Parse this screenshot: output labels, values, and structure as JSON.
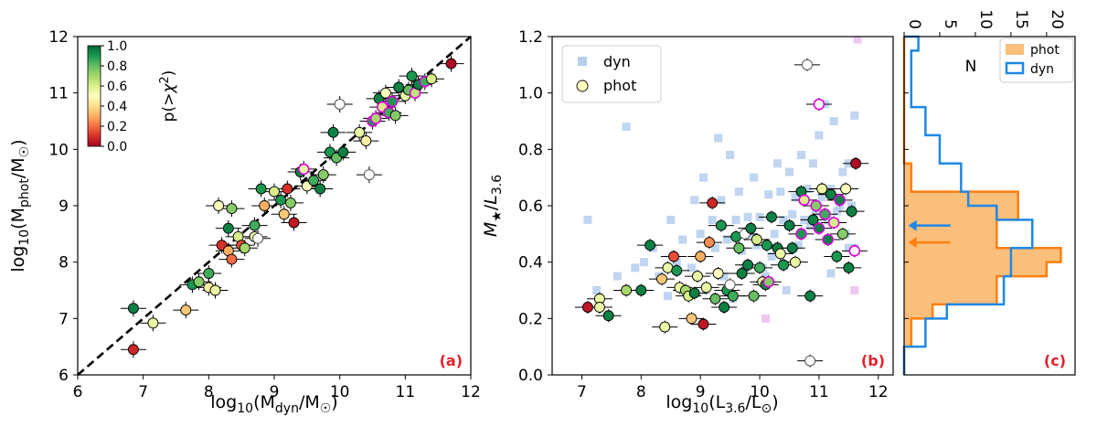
{
  "chart_data": [
    {
      "type": "scatter",
      "panel_label": "(a)",
      "xlabel": "log10(Mdyn/M☉)",
      "ylabel": "log10(Mphot/M☉)",
      "xlim": [
        6,
        12
      ],
      "ylim": [
        6,
        12
      ],
      "xticks": [
        "6",
        "7",
        "8",
        "9",
        "10",
        "11",
        "12"
      ],
      "yticks": [
        "6",
        "7",
        "8",
        "9",
        "10",
        "11",
        "12"
      ],
      "one_to_one_line": true,
      "colorbar": {
        "label": "p(>χ²)",
        "ticks": [
          "0.0",
          "0.2",
          "0.4",
          "0.6",
          "0.8",
          "1.0"
        ],
        "colors": [
          "#a50026",
          "#d73027",
          "#f46d43",
          "#fdae61",
          "#fee08b",
          "#ffffbf",
          "#d9ef8b",
          "#a6d96a",
          "#66bd63",
          "#1a9850",
          "#006837"
        ]
      },
      "points": [
        {
          "x": 6.85,
          "y": 7.18,
          "p": 0.95
        },
        {
          "x": 6.85,
          "y": 6.45,
          "p": 0.08
        },
        {
          "x": 7.15,
          "y": 6.92,
          "p": 0.55
        },
        {
          "x": 7.65,
          "y": 7.15,
          "p": 0.35
        },
        {
          "x": 7.75,
          "y": 7.6,
          "p": 0.9
        },
        {
          "x": 7.85,
          "y": 7.65,
          "p": 0.75
        },
        {
          "x": 8.0,
          "y": 7.8,
          "p": 0.85
        },
        {
          "x": 8.0,
          "y": 7.55,
          "p": 0.45
        },
        {
          "x": 8.1,
          "y": 7.5,
          "p": 0.55
        },
        {
          "x": 8.2,
          "y": 8.3,
          "p": 0.1
        },
        {
          "x": 8.3,
          "y": 8.2,
          "p": 0.3
        },
        {
          "x": 8.35,
          "y": 8.05,
          "p": 0.2
        },
        {
          "x": 8.3,
          "y": 8.6,
          "p": 0.95
        },
        {
          "x": 8.45,
          "y": 8.45,
          "p": 0.6
        },
        {
          "x": 8.5,
          "y": 8.3,
          "p": 0.15
        },
        {
          "x": 8.55,
          "y": 8.25,
          "p": 0.7
        },
        {
          "x": 8.15,
          "y": 9.0,
          "p": 0.5
        },
        {
          "x": 8.35,
          "y": 8.95,
          "p": 0.75
        },
        {
          "x": 8.7,
          "y": 8.65,
          "p": 0.85
        },
        {
          "x": 8.7,
          "y": 8.45,
          "p": 0.55
        },
        {
          "x": 8.75,
          "y": 8.42,
          "p": -1
        },
        {
          "x": 8.85,
          "y": 9.0,
          "p": 0.3
        },
        {
          "x": 8.8,
          "y": 9.3,
          "p": 0.9
        },
        {
          "x": 9.0,
          "y": 9.25,
          "p": 0.6
        },
        {
          "x": 9.1,
          "y": 9.1,
          "p": 0.9
        },
        {
          "x": 9.15,
          "y": 8.85,
          "p": 0.35
        },
        {
          "x": 9.2,
          "y": 9.3,
          "p": 0.1
        },
        {
          "x": 9.25,
          "y": 9.05,
          "p": 0.75
        },
        {
          "x": 9.3,
          "y": 8.7,
          "p": 0.05
        },
        {
          "x": 9.4,
          "y": 9.6,
          "p": 0.95
        },
        {
          "x": 9.45,
          "y": 9.65,
          "p": 0.55,
          "ring": true
        },
        {
          "x": 9.5,
          "y": 9.35,
          "p": 0.5
        },
        {
          "x": 9.6,
          "y": 9.45,
          "p": 0.85
        },
        {
          "x": 9.7,
          "y": 9.3,
          "p": 0.95
        },
        {
          "x": 9.75,
          "y": 9.55,
          "p": 0.75
        },
        {
          "x": 9.85,
          "y": 9.95,
          "p": 0.9
        },
        {
          "x": 9.9,
          "y": 10.3,
          "p": 0.95
        },
        {
          "x": 9.95,
          "y": 9.85,
          "p": 0.8
        },
        {
          "x": 10.0,
          "y": 10.8,
          "p": -1
        },
        {
          "x": 10.05,
          "y": 9.95,
          "p": 0.95
        },
        {
          "x": 10.3,
          "y": 10.3,
          "p": 0.55
        },
        {
          "x": 10.4,
          "y": 10.15,
          "p": 0.45
        },
        {
          "x": 10.45,
          "y": 9.55,
          "p": -1
        },
        {
          "x": 10.5,
          "y": 10.5,
          "p": 0.9,
          "ring": true
        },
        {
          "x": 10.55,
          "y": 10.55,
          "p": 0.7,
          "ring": true
        },
        {
          "x": 10.6,
          "y": 10.9,
          "p": 0.95
        },
        {
          "x": 10.65,
          "y": 10.75,
          "p": 0.6,
          "ring": true
        },
        {
          "x": 10.7,
          "y": 11.0,
          "p": 0.5
        },
        {
          "x": 10.75,
          "y": 10.65,
          "p": 0.85,
          "ring": true
        },
        {
          "x": 10.8,
          "y": 10.85,
          "p": 0.9,
          "ring": true
        },
        {
          "x": 10.85,
          "y": 10.6,
          "p": 0.75
        },
        {
          "x": 10.9,
          "y": 11.1,
          "p": 0.95
        },
        {
          "x": 11.0,
          "y": 10.95,
          "p": 0.55
        },
        {
          "x": 11.05,
          "y": 11.05,
          "p": 0.8
        },
        {
          "x": 11.1,
          "y": 11.3,
          "p": 0.9
        },
        {
          "x": 11.15,
          "y": 11.0,
          "p": 0.65,
          "ring": true
        },
        {
          "x": 11.2,
          "y": 11.15,
          "p": 0.95
        },
        {
          "x": 11.3,
          "y": 11.2,
          "p": 0.85,
          "ring": true
        },
        {
          "x": 11.4,
          "y": 11.25,
          "p": 0.6
        },
        {
          "x": 11.7,
          "y": 11.52,
          "p": 0.02
        }
      ]
    },
    {
      "type": "scatter",
      "panel_label": "(b)",
      "xlabel": "log10(L3.6/L⊙)",
      "ylabel": "M★/L3.6",
      "xlim": [
        6.5,
        12.25
      ],
      "ylim": [
        0,
        1.2
      ],
      "xticks": [
        "7",
        "8",
        "9",
        "10",
        "11",
        "12"
      ],
      "yticks": [
        "0.0",
        "0.2",
        "0.4",
        "0.6",
        "0.8",
        "1.0",
        "1.2"
      ],
      "legend": {
        "position": "top-left",
        "items": [
          {
            "label": "dyn",
            "marker": "square"
          },
          {
            "label": "phot",
            "marker": "circle"
          }
        ]
      },
      "dyn_points": [
        [
          7.1,
          0.55
        ],
        [
          7.25,
          0.3
        ],
        [
          7.6,
          0.35
        ],
        [
          7.75,
          0.88
        ],
        [
          7.9,
          0.38
        ],
        [
          8.05,
          0.4
        ],
        [
          8.2,
          0.45
        ],
        [
          8.3,
          0.35
        ],
        [
          8.45,
          0.28
        ],
        [
          8.5,
          0.55
        ],
        [
          8.6,
          0.4
        ],
        [
          8.7,
          0.48
        ],
        [
          8.75,
          0.3
        ],
        [
          8.85,
          0.38
        ],
        [
          8.9,
          0.62
        ],
        [
          9.0,
          0.5
        ],
        [
          9.05,
          0.7
        ],
        [
          9.1,
          0.3
        ],
        [
          9.2,
          0.55
        ],
        [
          9.25,
          0.45
        ],
        [
          9.3,
          0.84
        ],
        [
          9.35,
          0.62
        ],
        [
          9.4,
          0.35
        ],
        [
          9.45,
          0.48
        ],
        [
          9.5,
          0.78
        ],
        [
          9.55,
          0.27
        ],
        [
          9.6,
          0.55
        ],
        [
          9.65,
          0.65
        ],
        [
          9.7,
          0.44
        ],
        [
          9.75,
          0.38
        ],
        [
          9.8,
          0.56
        ],
        [
          9.85,
          0.5
        ],
        [
          9.9,
          0.7
        ],
        [
          9.95,
          0.46
        ],
        [
          10.0,
          0.56
        ],
        [
          10.05,
          0.38
        ],
        [
          10.1,
          0.2
        ],
        [
          10.15,
          0.64
        ],
        [
          10.2,
          0.42
        ],
        [
          10.25,
          0.5
        ],
        [
          10.3,
          0.75
        ],
        [
          10.35,
          0.65
        ],
        [
          10.4,
          0.55
        ],
        [
          10.45,
          0.3
        ],
        [
          10.5,
          0.72
        ],
        [
          10.55,
          0.57
        ],
        [
          10.6,
          0.63
        ],
        [
          10.65,
          0.46
        ],
        [
          10.7,
          0.78
        ],
        [
          10.75,
          0.55
        ],
        [
          10.8,
          0.66
        ],
        [
          10.85,
          0.53
        ],
        [
          10.9,
          0.75
        ],
        [
          10.95,
          0.58
        ],
        [
          11.0,
          0.85
        ],
        [
          11.05,
          0.63
        ],
        [
          11.1,
          0.96
        ],
        [
          11.15,
          0.55
        ],
        [
          11.2,
          0.66
        ],
        [
          11.25,
          0.9
        ],
        [
          11.3,
          0.58
        ],
        [
          11.35,
          0.6
        ],
        [
          11.4,
          0.72
        ],
        [
          11.45,
          0.5
        ],
        [
          11.5,
          0.75
        ],
        [
          11.55,
          0.6
        ],
        [
          11.6,
          0.92
        ],
        [
          11.6,
          0.45
        ],
        [
          11.65,
          1.19
        ],
        [
          7.6,
          0.98
        ],
        [
          11.6,
          0.3
        ],
        [
          11.2,
          0.36
        ],
        [
          10.1,
          0.35
        ],
        [
          11.5,
          0.45
        ]
      ],
      "phot_points": [
        {
          "x": 7.1,
          "y": 0.24,
          "p": 0.05
        },
        {
          "x": 7.3,
          "y": 0.27,
          "p": 0.55
        },
        {
          "x": 7.3,
          "y": 0.24,
          "p": 0.55
        },
        {
          "x": 7.45,
          "y": 0.21,
          "p": 0.95
        },
        {
          "x": 8.15,
          "y": 0.46,
          "p": 0.95
        },
        {
          "x": 7.75,
          "y": 0.3,
          "p": 0.7
        },
        {
          "x": 8.0,
          "y": 0.3,
          "p": 0.95
        },
        {
          "x": 8.35,
          "y": 0.34,
          "p": 0.35
        },
        {
          "x": 8.4,
          "y": 0.17,
          "p": 0.55
        },
        {
          "x": 8.45,
          "y": 0.38,
          "p": 0.55
        },
        {
          "x": 8.55,
          "y": 0.42,
          "p": 0.15
        },
        {
          "x": 8.6,
          "y": 0.37,
          "p": 0.9
        },
        {
          "x": 8.65,
          "y": 0.31,
          "p": 0.55
        },
        {
          "x": 8.75,
          "y": 0.3,
          "p": 0.7
        },
        {
          "x": 8.8,
          "y": 0.28,
          "p": 0.6
        },
        {
          "x": 8.85,
          "y": 0.2,
          "p": 0.35
        },
        {
          "x": 8.9,
          "y": 0.29,
          "p": 0.95
        },
        {
          "x": 8.95,
          "y": 0.35,
          "p": 0.55
        },
        {
          "x": 9.0,
          "y": 0.42,
          "p": 0.3
        },
        {
          "x": 9.05,
          "y": 0.18,
          "p": 0.05
        },
        {
          "x": 9.1,
          "y": 0.31,
          "p": 0.55
        },
        {
          "x": 9.15,
          "y": 0.47,
          "p": 0.25
        },
        {
          "x": 9.2,
          "y": 0.61,
          "p": 0.08
        },
        {
          "x": 9.25,
          "y": 0.27,
          "p": 0.8
        },
        {
          "x": 9.3,
          "y": 0.36,
          "p": 0.5
        },
        {
          "x": 9.35,
          "y": 0.53,
          "p": 0.9
        },
        {
          "x": 9.4,
          "y": 0.24,
          "p": 0.95
        },
        {
          "x": 9.45,
          "y": 0.3,
          "p": 0.9
        },
        {
          "x": 9.5,
          "y": 0.32,
          "p": -1
        },
        {
          "x": 9.55,
          "y": 0.28,
          "p": 0.85
        },
        {
          "x": 9.6,
          "y": 0.49,
          "p": 0.9
        },
        {
          "x": 9.65,
          "y": 0.45,
          "p": 0.8
        },
        {
          "x": 9.7,
          "y": 0.36,
          "p": 0.95
        },
        {
          "x": 9.75,
          "y": 0.5,
          "p": -1
        },
        {
          "x": 9.8,
          "y": 0.39,
          "p": 0.95
        },
        {
          "x": 9.85,
          "y": 0.52,
          "p": 0.95
        },
        {
          "x": 9.9,
          "y": 0.28,
          "p": 0.8
        },
        {
          "x": 9.95,
          "y": 0.48,
          "p": 0.6
        },
        {
          "x": 10.0,
          "y": 0.38,
          "p": 0.85
        },
        {
          "x": 10.05,
          "y": 0.33,
          "p": 0.55
        },
        {
          "x": 10.1,
          "y": 0.32,
          "p": 0.95
        },
        {
          "x": 10.12,
          "y": 0.46,
          "p": 0.9
        },
        {
          "x": 10.15,
          "y": 0.33,
          "p": 0.75,
          "ring": true
        },
        {
          "x": 10.2,
          "y": 0.56,
          "p": 0.95
        },
        {
          "x": 10.3,
          "y": 0.45,
          "p": 0.95
        },
        {
          "x": 10.35,
          "y": 0.43,
          "p": 0.55
        },
        {
          "x": 10.4,
          "y": 0.39,
          "p": 0.9
        },
        {
          "x": 10.5,
          "y": 0.53,
          "p": 0.95
        },
        {
          "x": 10.55,
          "y": 0.45,
          "p": 0.95
        },
        {
          "x": 10.6,
          "y": 0.4,
          "p": 0.55
        },
        {
          "x": 10.7,
          "y": 0.65,
          "p": 0.95
        },
        {
          "x": 10.75,
          "y": 0.62,
          "p": 0.6,
          "ring": true
        },
        {
          "x": 10.8,
          "y": 1.1,
          "p": -1
        },
        {
          "x": 10.85,
          "y": 0.28,
          "p": 0.95
        },
        {
          "x": 10.85,
          "y": 0.05,
          "p": -1
        },
        {
          "x": 10.9,
          "y": 0.55,
          "p": 0.95
        },
        {
          "x": 10.95,
          "y": 0.6,
          "p": 0.75,
          "ring": true
        },
        {
          "x": 11.0,
          "y": 0.96,
          "p": -1,
          "ring": true
        },
        {
          "x": 11.05,
          "y": 0.66,
          "p": 0.55
        },
        {
          "x": 11.1,
          "y": 0.57,
          "p": 0.85,
          "ring": true
        },
        {
          "x": 11.15,
          "y": 0.48,
          "p": 0.95,
          "ring": true
        },
        {
          "x": 11.2,
          "y": 0.64,
          "p": 0.95
        },
        {
          "x": 11.25,
          "y": 0.54,
          "p": 0.6,
          "ring": true
        },
        {
          "x": 11.3,
          "y": 0.42,
          "p": 0.9
        },
        {
          "x": 11.35,
          "y": 0.62,
          "p": 0.95,
          "ring": true
        },
        {
          "x": 11.4,
          "y": 0.5,
          "p": 0.75
        },
        {
          "x": 11.45,
          "y": 0.66,
          "p": 0.5
        },
        {
          "x": 11.5,
          "y": 0.38,
          "p": 0.95
        },
        {
          "x": 11.55,
          "y": 0.58,
          "p": 0.95
        },
        {
          "x": 11.6,
          "y": 0.44,
          "p": -1,
          "ring": true
        },
        {
          "x": 11.62,
          "y": 0.75,
          "p": 0.02
        },
        {
          "x": 11.0,
          "y": 0.52,
          "p": 0.95,
          "ring": true
        },
        {
          "x": 10.7,
          "y": 0.5,
          "p": 0.9,
          "ring": true
        }
      ]
    },
    {
      "type": "histogram",
      "panel_label": "(c)",
      "xlabel": "N",
      "orientation": "horizontal",
      "xlim": [
        0,
        24
      ],
      "ylim": [
        0,
        1.2
      ],
      "xticks": [
        "0",
        "5",
        "10",
        "15",
        "20"
      ],
      "bin_edges": [
        0,
        0.05,
        0.1,
        0.15,
        0.2,
        0.25,
        0.3,
        0.35,
        0.4,
        0.45,
        0.5,
        0.55,
        0.6,
        0.65,
        0.7,
        0.75,
        0.8,
        0.85,
        0.9,
        0.95,
        1.0,
        1.05,
        1.1,
        1.15,
        1.2
      ],
      "legend": {
        "position": "top-right",
        "items": [
          "phot",
          "dyn"
        ]
      },
      "series": [
        {
          "name": "phot",
          "color": "#ff7f0e",
          "fill": "#fbbf7c",
          "counts": [
            0,
            0,
            1,
            1,
            4,
            13,
            13,
            20,
            22,
            13,
            13,
            16,
            16,
            1,
            1,
            0,
            0,
            0,
            0,
            0,
            0,
            0,
            0,
            0
          ]
        },
        {
          "name": "dyn",
          "color": "#1e88e5",
          "counts": [
            0,
            0,
            3,
            3,
            6,
            14,
            14,
            15,
            15,
            18,
            18,
            13,
            9,
            8,
            8,
            5,
            5,
            3,
            3,
            1,
            1,
            1,
            1,
            2
          ]
        }
      ],
      "median_arrows": [
        {
          "series": "phot",
          "y": 0.47
        },
        {
          "series": "dyn",
          "y": 0.53
        }
      ]
    }
  ]
}
